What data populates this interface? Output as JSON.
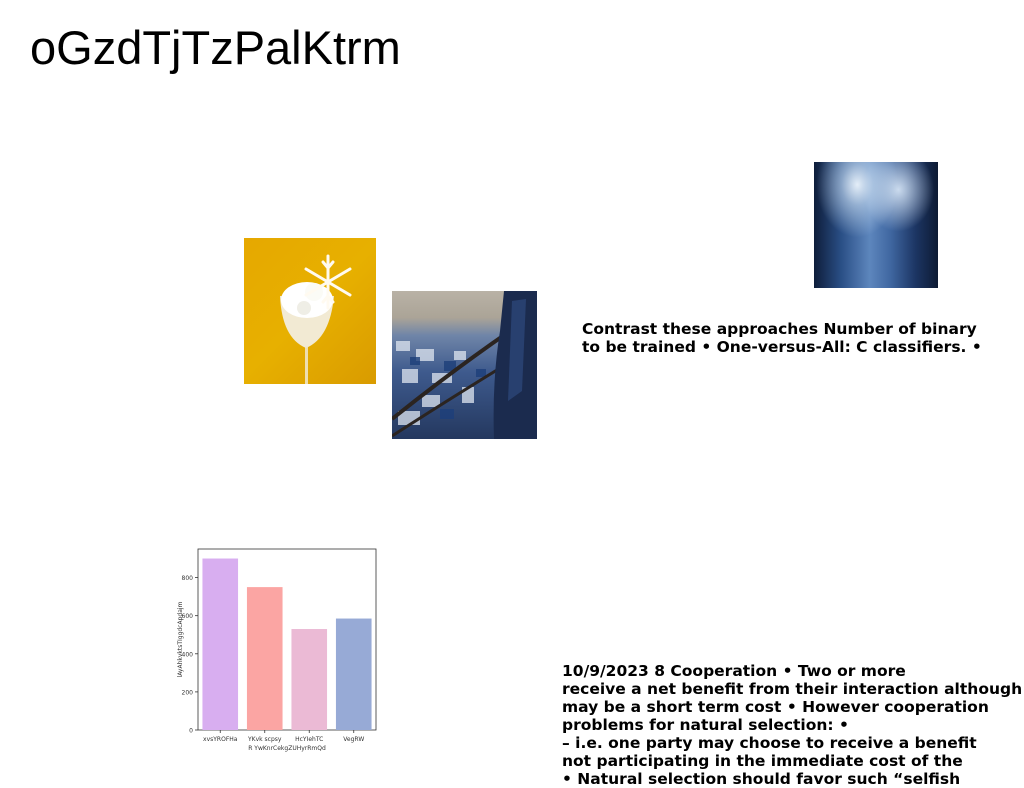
{
  "title": "oGzdTjTzPalKtrm",
  "images": {
    "drink": "glass-with-snowflake-photo",
    "city": "city-rooftops-balcony-photo",
    "blur": "blurred-blue-trees-photo"
  },
  "text_blocks": [
    {
      "lines": [
        "Contrast these approaches Number of binary",
        "to be trained • One-versus-All: C classifiers. •"
      ]
    },
    {
      "lines": [
        "10/9/2023 8 Cooperation • Two or more",
        "receive a net benefit from their interaction although",
        "may be a short term cost • However cooperation",
        "problems for natural selection: •",
        "– i.e. one party may choose to receive a benefit",
        "not participating in the immediate cost of the",
        "• Natural selection should favor such “selfish"
      ]
    }
  ],
  "chart_data": {
    "type": "bar",
    "categories": [
      "xvsYROFHa",
      "YKvk scpsy",
      "HcYIehTC",
      "VegRW"
    ],
    "values": [
      900,
      750,
      530,
      585
    ],
    "colors": [
      "#d8aef0",
      "#fba5a3",
      "#ebbad5",
      "#97aad6"
    ],
    "xlabel": "R YwKnrCekgZUHyrRmQd",
    "ylabel": "lAyAhkvktsTIggdcApdajm",
    "ylim": [
      0,
      950
    ],
    "yticks": [
      0,
      200,
      400,
      600,
      800
    ]
  }
}
